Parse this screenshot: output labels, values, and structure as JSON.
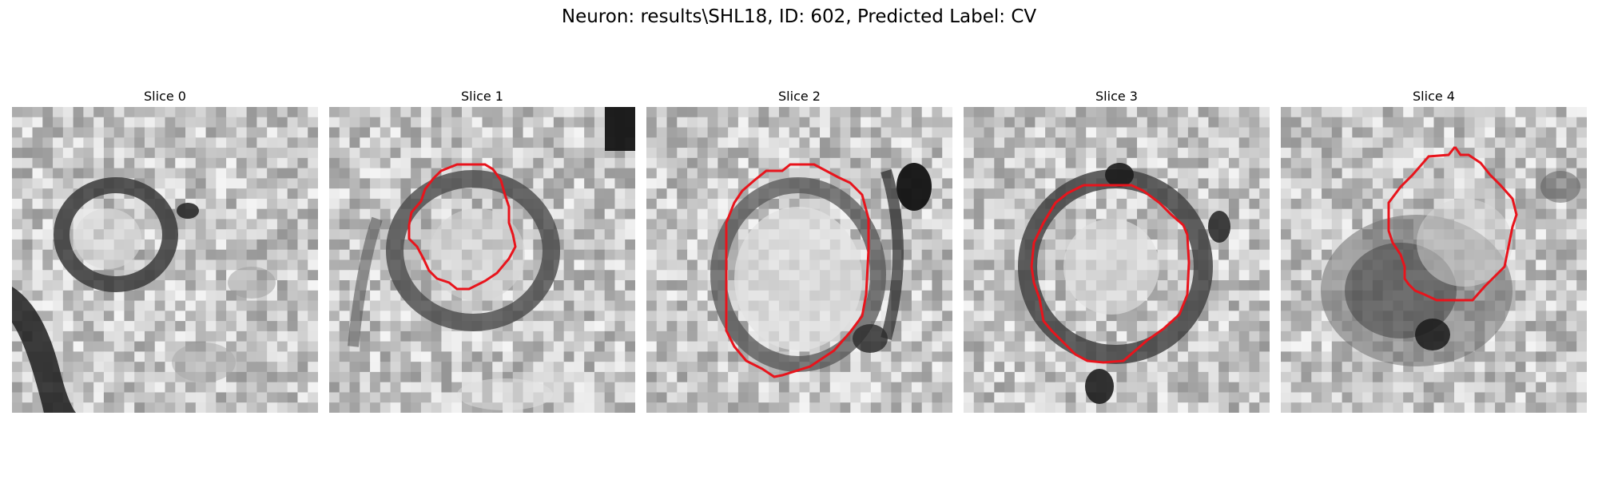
{
  "figure": {
    "title": "Neuron: results\\SHL18, ID: 602, Predicted Label: CV"
  },
  "slices": [
    {
      "title": "Slice 0",
      "has_contour": false
    },
    {
      "title": "Slice 1",
      "has_contour": true
    },
    {
      "title": "Slice 2",
      "has_contour": true
    },
    {
      "title": "Slice 3",
      "has_contour": true
    },
    {
      "title": "Slice 4",
      "has_contour": true
    }
  ],
  "colors": {
    "contour": "#e8141c",
    "background": "#ffffff"
  }
}
